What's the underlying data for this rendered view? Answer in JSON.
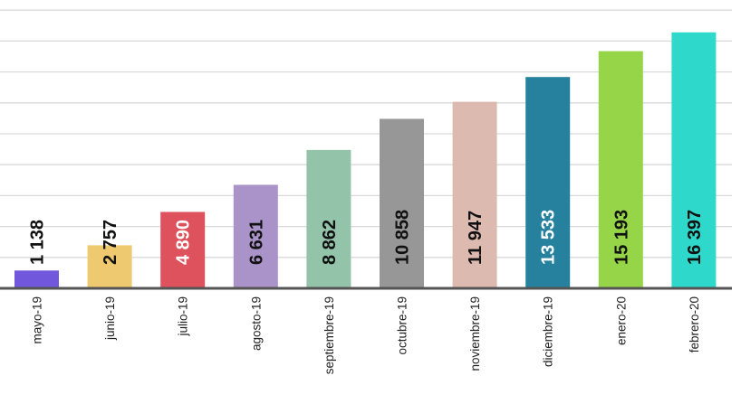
{
  "chart_data": {
    "type": "bar",
    "title": "",
    "xlabel": "",
    "ylabel": "",
    "categories": [
      "mayo-19",
      "junio-19",
      "julio-19",
      "agosto-19",
      "septiembre-19",
      "octubre-19",
      "noviembre-19",
      "diciembre-19",
      "enero-20",
      "febrero-20"
    ],
    "values": [
      1138,
      2757,
      4890,
      6631,
      8862,
      10858,
      11947,
      13533,
      15193,
      16397
    ],
    "value_labels": [
      "1 138",
      "2 757",
      "4 890",
      "6 631",
      "8 862",
      "10 858",
      "11 947",
      "13 533",
      "15 193",
      "16 397"
    ],
    "colors": [
      "#7057dc",
      "#efc96f",
      "#dd525d",
      "#a993c8",
      "#93c4aa",
      "#979797",
      "#ddbab0",
      "#26819f",
      "#97d548",
      "#2ed8ca"
    ],
    "label_colors": [
      "#111111",
      "#111111",
      "#ffffff",
      "#111111",
      "#111111",
      "#111111",
      "#111111",
      "#ffffff",
      "#111111",
      "#111111"
    ],
    "ylim": [
      0,
      16500
    ],
    "grid": true,
    "legend": "none"
  }
}
